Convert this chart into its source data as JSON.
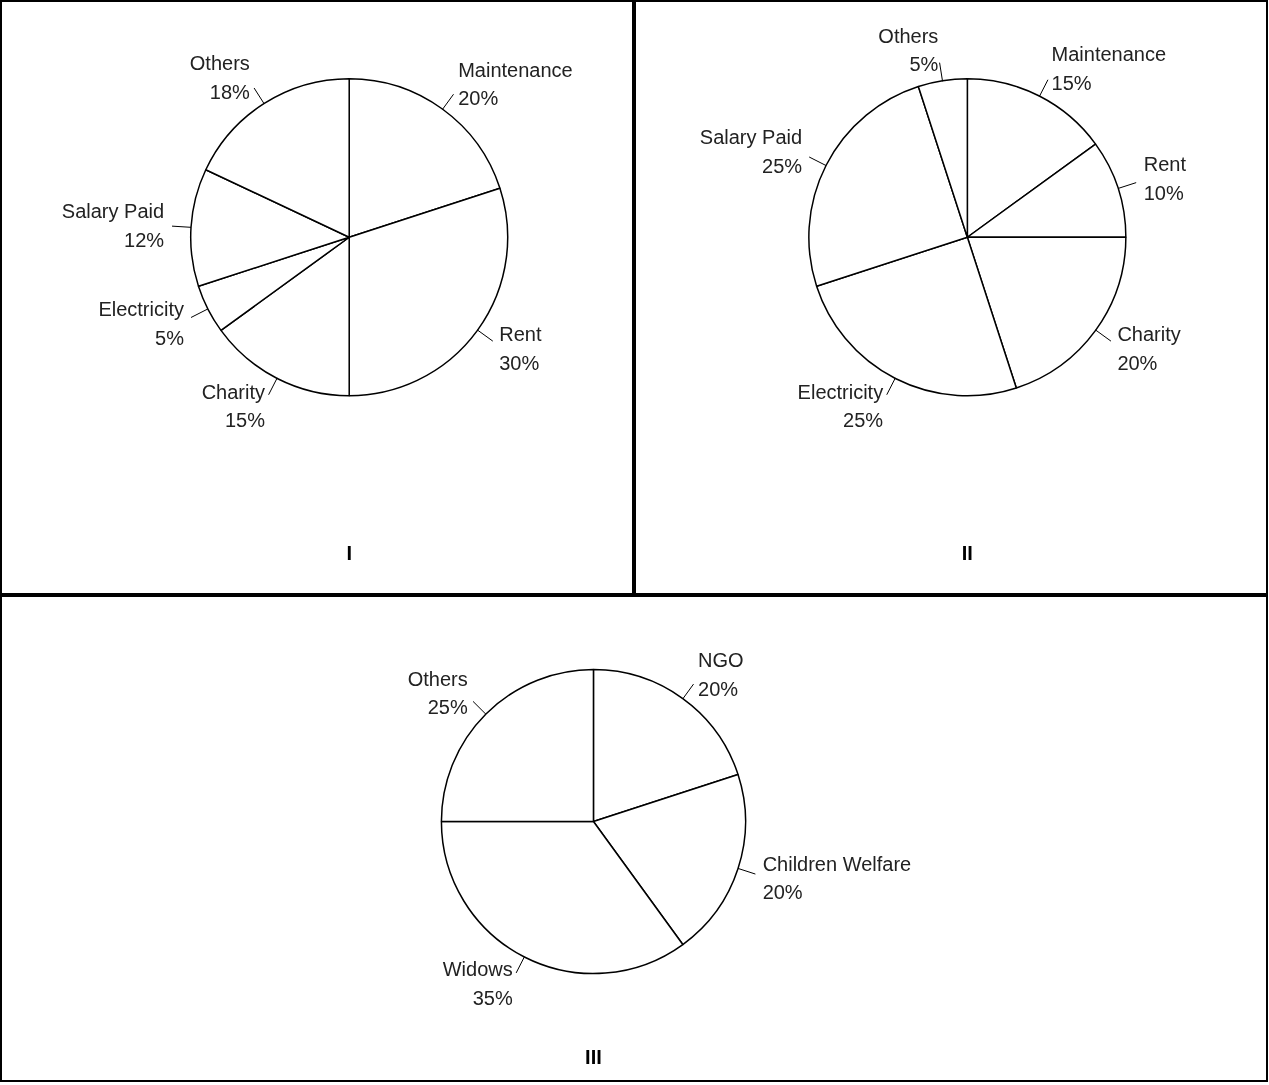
{
  "chart_data": [
    {
      "type": "pie",
      "title": "I",
      "categories": [
        "Maintenance",
        "Rent",
        "Charity",
        "Electricity",
        "Salary Paid",
        "Others"
      ],
      "values": [
        20,
        30,
        15,
        5,
        12,
        18
      ],
      "value_labels": [
        "20%",
        "30%",
        "15%",
        "5%",
        "12%",
        "18%"
      ],
      "colors": [
        "#ffffff",
        "#ffffff",
        "#ffffff",
        "#ffffff",
        "#ffffff",
        "#ffffff"
      ]
    },
    {
      "type": "pie",
      "title": "II",
      "categories": [
        "Maintenance",
        "Rent",
        "Charity",
        "Electricity",
        "Salary Paid",
        "Others"
      ],
      "values": [
        15,
        10,
        20,
        25,
        25,
        5
      ],
      "value_labels": [
        "15%",
        "10%",
        "20%",
        "25%",
        "25%",
        "5%"
      ],
      "colors": [
        "#ffffff",
        "#ffffff",
        "#ffffff",
        "#ffffff",
        "#ffffff",
        "#ffffff"
      ]
    },
    {
      "type": "pie",
      "title": "III",
      "categories": [
        "NGO",
        "Children Welfare",
        "Widows",
        "Others"
      ],
      "values": [
        20,
        20,
        35,
        25
      ],
      "value_labels": [
        "20%",
        "20%",
        "35%",
        "25%"
      ],
      "colors": [
        "#ffffff",
        "#ffffff",
        "#ffffff",
        "#ffffff"
      ]
    }
  ]
}
